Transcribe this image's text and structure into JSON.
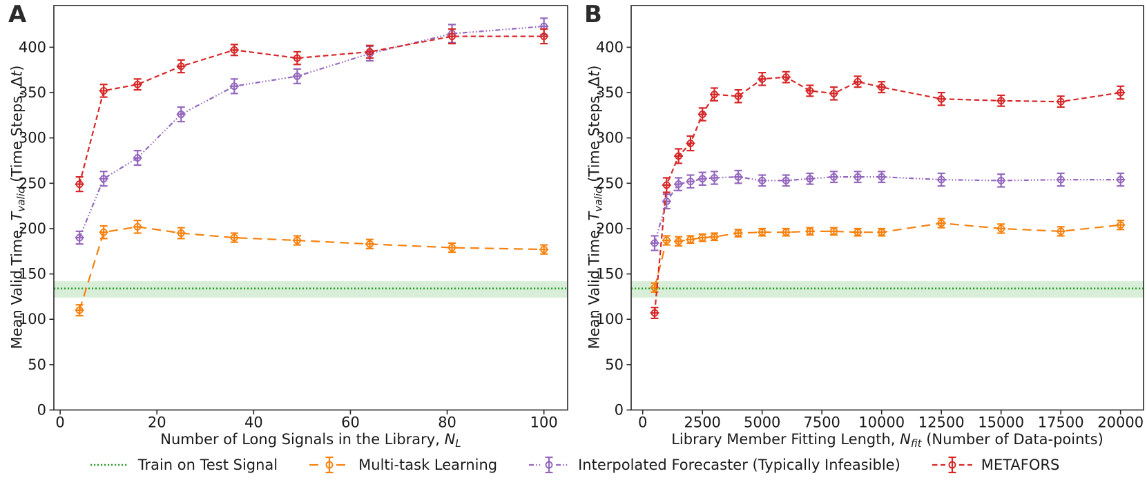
{
  "figure": {
    "background": "#ffffff"
  },
  "colors": {
    "mtl": "#f7810d",
    "interp": "#9467bd",
    "metafors": "#d62728",
    "baseline": "#2ca02c",
    "band": "rgba(44,160,44,0.18)",
    "text": "#1a1a1a",
    "spine": "#262626"
  },
  "panels": [
    {
      "letter": "A",
      "xlabel_segments": [
        {
          "t": "Number of Long Signals in the Library, "
        },
        {
          "t": "N",
          "i": true
        },
        {
          "t": "L",
          "i": true,
          "sub": true
        }
      ],
      "ylabel_segments": [
        {
          "t": "Mean Valid Time, "
        },
        {
          "t": "T",
          "i": true
        },
        {
          "t": "valid",
          "i": true,
          "sub": true
        },
        {
          "t": " (Time Steps, Δ"
        },
        {
          "t": "t",
          "i": true
        },
        {
          "t": ")"
        }
      ]
    },
    {
      "letter": "B",
      "xlabel_segments": [
        {
          "t": "Library Member Fitting Length, "
        },
        {
          "t": "N",
          "i": true
        },
        {
          "t": "fit",
          "i": true,
          "sub": true
        },
        {
          "t": " (Number of Data-points)"
        }
      ],
      "ylabel_segments": [
        {
          "t": "Mean Valid Time, "
        },
        {
          "t": "T",
          "i": true
        },
        {
          "t": "valid",
          "i": true,
          "sub": true
        },
        {
          "t": " (Time Steps, Δ"
        },
        {
          "t": "t",
          "i": true
        },
        {
          "t": ")"
        }
      ]
    }
  ],
  "chart_data": [
    {
      "type": "line",
      "title": "A",
      "xlabel": "Number of Long Signals in the Library, N_L",
      "ylabel": "Mean Valid Time, T_valid (Time Steps, Δt)",
      "xlim": [
        -1.3,
        104.9
      ],
      "ylim": [
        0,
        446
      ],
      "xticks": [
        0,
        20,
        40,
        60,
        80,
        100
      ],
      "yticks": [
        0,
        50,
        100,
        150,
        200,
        250,
        300,
        350,
        400
      ],
      "grid": false,
      "x": [
        4,
        9,
        16,
        25,
        36,
        49,
        64,
        81,
        100
      ],
      "baseline": {
        "name": "Train on Test Signal",
        "value": 134,
        "band_low": 124,
        "band_high": 142
      },
      "series": [
        {
          "name": "Multi-task Learning",
          "key": "mtl",
          "dash": "long",
          "values": [
            110,
            196,
            202,
            195,
            190,
            187,
            183,
            179,
            177
          ],
          "err": [
            6,
            7,
            7,
            6,
            5,
            5,
            5,
            5,
            5
          ]
        },
        {
          "name": "Interpolated Forecaster (Typically Infeasible)",
          "key": "interp",
          "dash": "dashdotdot",
          "values": [
            190,
            255,
            278,
            326,
            357,
            368,
            393,
            415,
            423
          ],
          "err": [
            7,
            8,
            8,
            8,
            8,
            8,
            8,
            10,
            9
          ]
        },
        {
          "name": "METAFORS",
          "key": "metafors",
          "dash": "dash",
          "values": [
            249,
            352,
            359,
            379,
            397,
            388,
            395,
            412,
            412
          ],
          "err": [
            8,
            7,
            6,
            7,
            6,
            7,
            7,
            8,
            8
          ]
        }
      ]
    },
    {
      "type": "line",
      "title": "B",
      "xlabel": "Library Member Fitting Length, N_fit (Number of Data-points)",
      "ylabel": "Mean Valid Time, T_valid (Time Steps, Δt)",
      "xlim": [
        -483,
        20963
      ],
      "ylim": [
        0,
        446
      ],
      "xticks": [
        0,
        2500,
        5000,
        7500,
        10000,
        12500,
        15000,
        17500,
        20000
      ],
      "yticks": [
        0,
        50,
        100,
        150,
        200,
        250,
        300,
        350,
        400
      ],
      "grid": false,
      "x": [
        500,
        1000,
        1500,
        2000,
        2500,
        3000,
        4000,
        5000,
        6000,
        7000,
        8000,
        9000,
        10000,
        12500,
        15000,
        17500,
        20000
      ],
      "baseline": {
        "name": "Train on Test Signal",
        "value": 134,
        "band_low": 124,
        "band_high": 142
      },
      "series": [
        {
          "name": "Multi-task Learning",
          "key": "mtl",
          "dash": "long",
          "values": [
            135,
            187,
            186,
            188,
            190,
            191,
            195,
            196,
            196,
            197,
            197,
            196,
            196,
            206,
            200,
            197,
            204
          ],
          "err": [
            5,
            5,
            5,
            4,
            4,
            4,
            4,
            4,
            4,
            4,
            4,
            4,
            4,
            5,
            5,
            5,
            5
          ]
        },
        {
          "name": "Interpolated Forecaster (Typically Infeasible)",
          "key": "interp",
          "dash": "dashdotdot",
          "values": [
            184,
            230,
            249,
            252,
            255,
            256,
            257,
            253,
            253,
            255,
            257,
            257,
            257,
            254,
            253,
            254,
            254
          ],
          "err": [
            8,
            8,
            7,
            7,
            7,
            7,
            7,
            6,
            6,
            6,
            6,
            6,
            6,
            7,
            7,
            7,
            7
          ]
        },
        {
          "name": "METAFORS",
          "key": "metafors",
          "dash": "dash",
          "values": [
            107,
            248,
            280,
            294,
            326,
            348,
            346,
            365,
            367,
            352,
            349,
            362,
            356,
            343,
            341,
            340,
            350
          ],
          "err": [
            6,
            8,
            8,
            8,
            7,
            7,
            7,
            7,
            6,
            6,
            7,
            6,
            6,
            7,
            6,
            6,
            7
          ]
        }
      ]
    }
  ],
  "legend": {
    "items": [
      {
        "label": "Train on Test Signal",
        "swatch": "dotted",
        "color_key": "baseline"
      },
      {
        "label": "Multi-task Learning",
        "swatch": "errorbar",
        "color_key": "mtl",
        "dash": "long"
      },
      {
        "label": "Interpolated Forecaster (Typically Infeasible)",
        "swatch": "errorbar",
        "color_key": "interp",
        "dash": "dashdotdot"
      },
      {
        "label": "METAFORS",
        "swatch": "errorbar",
        "color_key": "metafors",
        "dash": "dash"
      }
    ]
  }
}
